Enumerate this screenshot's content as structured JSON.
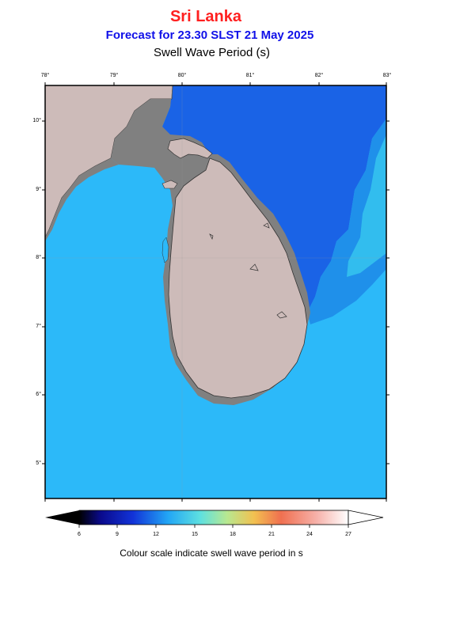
{
  "header": {
    "region": "Sri Lanka",
    "forecast": "Forecast for  23.30 SLST 21 May 2025",
    "parameter": "Swell Wave Period (s)"
  },
  "map": {
    "lon_ticks": [
      "78°",
      "79°",
      "80°",
      "81°",
      "82°",
      "83°"
    ],
    "lat_ticks": [
      "10°",
      "9°",
      "8°",
      "7°",
      "6°",
      "5°"
    ],
    "colors": {
      "land": "#cdbbb9",
      "shelf": "#808080",
      "sea_light": "#2cb9f9",
      "sea_dark": "#1a63e6",
      "sea_mid": "#22a2f3"
    }
  },
  "colorbar": {
    "ticks": [
      "6",
      "9",
      "12",
      "15",
      "18",
      "21",
      "24",
      "27"
    ],
    "caption": "Colour scale indicate swell wave period in s"
  }
}
